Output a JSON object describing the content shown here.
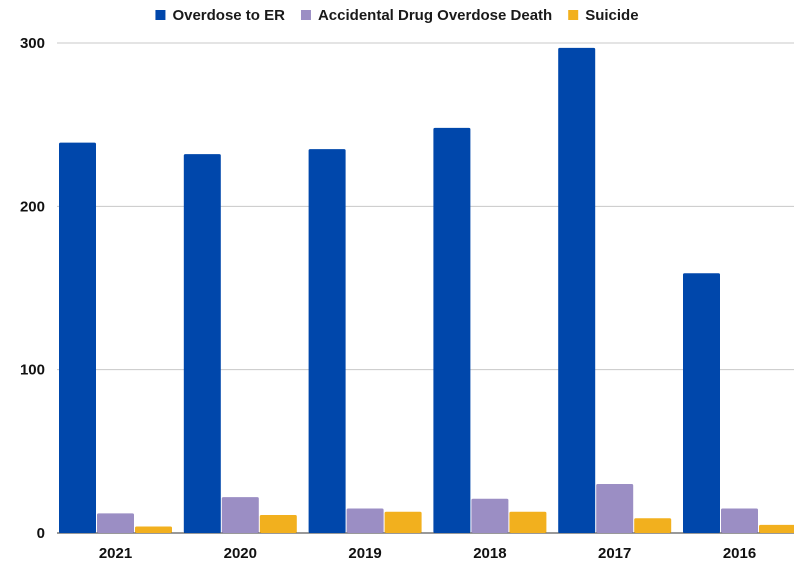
{
  "chart_data": {
    "type": "bar",
    "title": "",
    "xlabel": "",
    "ylabel": "",
    "categories": [
      "2021",
      "2020",
      "2019",
      "2018",
      "2017",
      "2016"
    ],
    "series": [
      {
        "name": "Overdose to ER",
        "color": "#0047AB",
        "values": [
          239,
          232,
          235,
          248,
          297,
          159
        ]
      },
      {
        "name": "Accidental Drug Overdose Death",
        "color": "#9B8EC4",
        "values": [
          12,
          22,
          15,
          21,
          30,
          15
        ]
      },
      {
        "name": "Suicide",
        "color": "#F2B01E",
        "values": [
          4,
          11,
          13,
          13,
          9,
          5
        ]
      }
    ],
    "ylim": [
      0,
      300
    ],
    "yticks": [
      0,
      100,
      200,
      300
    ],
    "grid": true,
    "legend_position": "top-center"
  }
}
